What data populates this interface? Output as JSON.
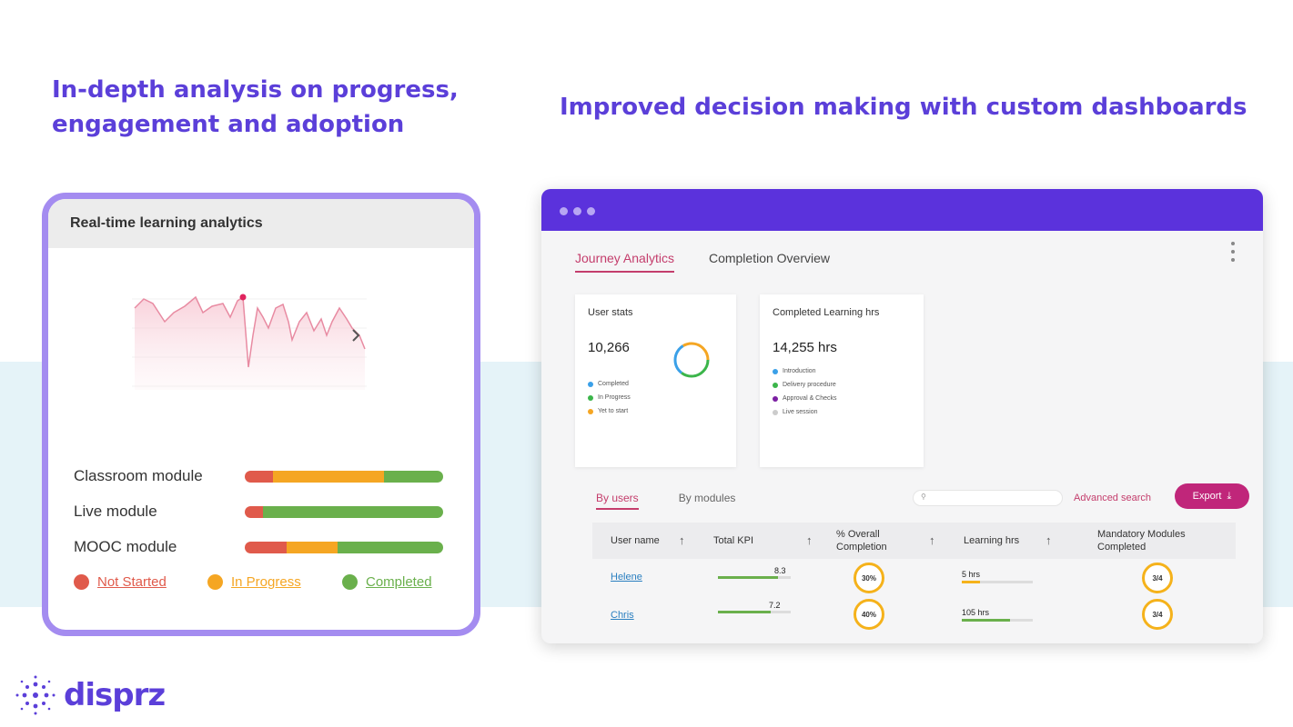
{
  "headline_left": "In-depth analysis on progress, engagement and adoption",
  "headline_right": "Improved decision making with custom dashboards",
  "left_card": {
    "title": "Real-time learning analytics",
    "modules": [
      {
        "label": "Classroom module",
        "not_started": 0.14,
        "in_progress": 0.56,
        "completed": 0.3
      },
      {
        "label": "Live module",
        "not_started": 0.09,
        "in_progress": 0.0,
        "completed": 0.91
      },
      {
        "label": "MOOC module",
        "not_started": 0.21,
        "in_progress": 0.26,
        "completed": 0.53
      }
    ],
    "legend": {
      "not_started": "Not Started",
      "in_progress": "In Progress",
      "completed": "Completed"
    },
    "colors": {
      "not_started": "#e05a4b",
      "in_progress": "#f5a623",
      "completed": "#6ab04c"
    }
  },
  "dashboard": {
    "tabs": [
      "Journey Analytics",
      "Completion Overview"
    ],
    "user_stats": {
      "title": "User stats",
      "value": "10,266",
      "rows": [
        {
          "label": "Completed",
          "color": "#3aa0e8"
        },
        {
          "label": "In Progress",
          "color": "#3bb54a"
        },
        {
          "label": "Yet to start",
          "color": "#f5a623"
        }
      ]
    },
    "learning_hrs": {
      "title": "Completed Learning hrs",
      "value": "14,255 hrs",
      "rows": [
        {
          "label": "Introduction",
          "color": "#3aa0e8"
        },
        {
          "label": "Delivery procedure",
          "color": "#3bb54a"
        },
        {
          "label": "Approval & Checks",
          "color": "#7b1fa2"
        },
        {
          "label": "Live session",
          "color": "#cccccc"
        }
      ]
    },
    "subtabs": [
      "By users",
      "By modules"
    ],
    "advanced_search": "Advanced search",
    "export": "Export",
    "table": {
      "headers": [
        "User name",
        "Total KPI",
        "% Overall Completion",
        "Learning hrs",
        "Mandatory Modules Completed"
      ],
      "rows": [
        {
          "name": "Helene",
          "kpi": "8.3",
          "kpi_frac": 0.83,
          "completion": "30%",
          "hours": "5 hrs",
          "hours_frac": 0.25,
          "hours_color": "#f5b21b",
          "modules": "3/4"
        },
        {
          "name": "Chris",
          "kpi": "7.2",
          "kpi_frac": 0.72,
          "completion": "40%",
          "hours": "105 hrs",
          "hours_frac": 0.68,
          "hours_color": "#6ab04c",
          "modules": "3/4"
        }
      ]
    }
  },
  "logo": "disprz"
}
